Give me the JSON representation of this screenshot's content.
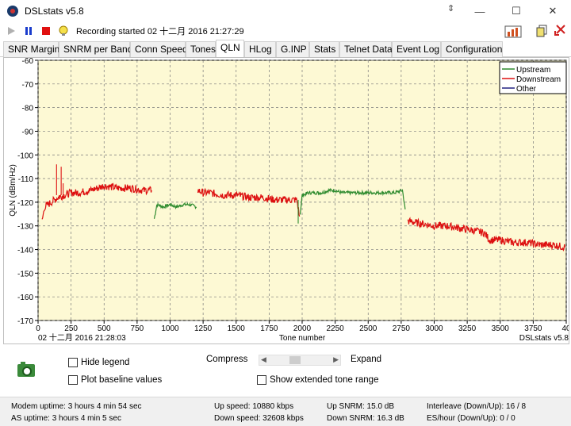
{
  "window": {
    "title": "DSLstats v5.8"
  },
  "toolbar": {
    "recording": "Recording started 02 十二月 2016 21:27:29"
  },
  "tabs": [
    "SNR Margin",
    "SNRM per Band",
    "Conn Speed",
    "Tones",
    "QLN",
    "HLog",
    "G.INP",
    "Stats",
    "Telnet Data",
    "Event Log",
    "Configuration"
  ],
  "active_tab": "QLN",
  "chart_data": {
    "type": "line",
    "ylabel": "QLN (dBm/Hz)",
    "xlabel": "Tone number",
    "xlim": [
      0,
      4000
    ],
    "ylim": [
      -170,
      -60
    ],
    "x_ticks": [
      "0",
      "250",
      "500",
      "750",
      "1000",
      "1250",
      "1500",
      "1750",
      "2000",
      "2250",
      "2500",
      "2750",
      "3000",
      "3250",
      "3500",
      "3750",
      "40"
    ],
    "y_ticks": [
      "-60",
      "-70",
      "-80",
      "-90",
      "-100",
      "-110",
      "-120",
      "-130",
      "-140",
      "-150",
      "-160",
      "-170"
    ],
    "grid": true,
    "legend_position": "top-right",
    "footer_left": "02 十二月 2016 21:28:03",
    "footer_right": "DSLstats v5.8",
    "series": [
      {
        "name": "Upstream",
        "color": "#2e8b2e",
        "segments": [
          {
            "x": [
              880,
              900,
              950,
              1000,
              1050,
              1100,
              1150,
              1200
            ],
            "y": [
              -127,
              -121,
              -122,
              -121,
              -122,
              -121,
              -121,
              -122
            ]
          },
          {
            "x": [
              1985,
              2000,
              2050,
              2100,
              2150,
              2200,
              2250,
              2300,
              2400,
              2500,
              2600,
              2700,
              2760,
              2780
            ],
            "y": [
              -125,
              -117,
              -116,
              -116,
              -116,
              -115,
              -115,
              -116,
              -116,
              -116,
              -116,
              -116,
              -115,
              -123
            ]
          }
        ]
      },
      {
        "name": "Downstream",
        "color": "#dd1010",
        "segments": [
          {
            "x": [
              30,
              50,
              100,
              150,
              200,
              250,
              300,
              400,
              500,
              600,
              700,
              800,
              860
            ],
            "y": [
              -128,
              -122,
              -120,
              -118,
              -117,
              -116,
              -116,
              -115,
              -113,
              -114,
              -114,
              -115,
              -115
            ]
          },
          {
            "x": [
              1210,
              1250,
              1300,
              1400,
              1500,
              1600,
              1700,
              1800,
              1900,
              1960,
              1980
            ],
            "y": [
              -115,
              -116,
              -116,
              -117,
              -117,
              -118,
              -118,
              -119,
              -119,
              -119,
              -126
            ]
          },
          {
            "x": [
              2800,
              2900,
              3000,
              3100,
              3200,
              3300,
              3380,
              3420,
              3500,
              3600,
              3700,
              3800,
              3900,
              3990
            ],
            "y": [
              -128,
              -129,
              -130,
              -130,
              -131,
              -132,
              -133,
              -136,
              -136,
              -137,
              -137,
              -138,
              -138,
              -139
            ]
          }
        ]
      },
      {
        "name": "Other",
        "color": "#202080",
        "segments": []
      }
    ]
  },
  "controls": {
    "hide_legend": "Hide legend",
    "plot_baseline": "Plot baseline values",
    "compress": "Compress",
    "expand": "Expand",
    "extended_range": "Show extended tone range"
  },
  "status": {
    "modem_uptime": "Modem uptime:  3 hours 4 min 54 sec",
    "as_uptime": "AS uptime:  3 hours 4 min 5 sec",
    "up_speed": "Up speed: 10880 kbps",
    "down_speed": "Down speed: 32608 kbps",
    "up_snrm": "Up SNRM: 15.0 dB",
    "down_snrm": "Down SNRM: 16.3 dB",
    "interleave": "Interleave (Down/Up): 16 / 8",
    "es_hour": "ES/hour (Down/Up): 0 / 0"
  }
}
